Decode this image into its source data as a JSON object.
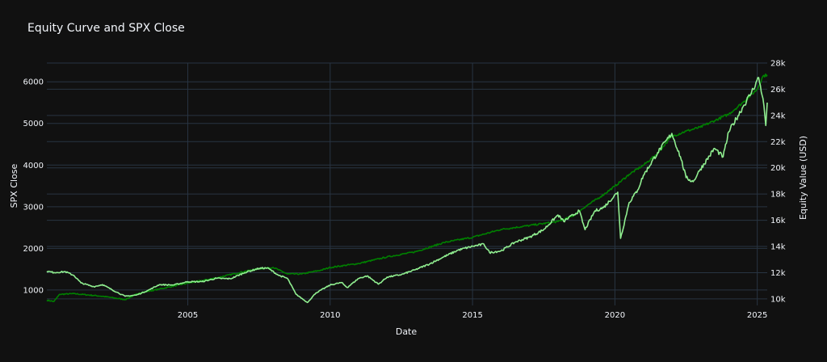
{
  "chart_data": {
    "type": "line",
    "title": "Equity Curve and SPX Close",
    "xlabel": "Date",
    "ylabel_left": "SPX Close",
    "ylabel_right": "Equity Value (USD)",
    "x_ticks": [
      "2005",
      "2010",
      "2015",
      "2020",
      "2025"
    ],
    "x_range": [
      2000.05,
      2025.35
    ],
    "y_left_ticks": [
      "1000",
      "2000",
      "3000",
      "4000",
      "5000",
      "6000"
    ],
    "y_left_range": [
      630,
      6450
    ],
    "y_right_ticks": [
      "10k",
      "12k",
      "14k",
      "16k",
      "18k",
      "20k",
      "22k",
      "24k",
      "26k",
      "28k"
    ],
    "y_right_range": [
      9500,
      28000
    ],
    "grid": true,
    "colors": {
      "background": "#111111",
      "grid": "#283442",
      "text": "#f2f5fa",
      "spx": "#90ee90",
      "equity": "#008000",
      "equity_flat": "#0000ff"
    },
    "series": [
      {
        "axis": "left",
        "color": "#90ee90",
        "x": [
          2000.05,
          2000.3,
          2000.7,
          2001.0,
          2001.25,
          2001.7,
          2002.0,
          2002.5,
          2002.8,
          2003.2,
          2003.6,
          2004.0,
          2004.5,
          2005.0,
          2005.5,
          2006.0,
          2006.5,
          2007.0,
          2007.5,
          2007.8,
          2008.2,
          2008.5,
          2008.8,
          2009.2,
          2009.5,
          2010.0,
          2010.4,
          2010.6,
          2011.0,
          2011.3,
          2011.7,
          2012.0,
          2012.5,
          2013.0,
          2013.5,
          2014.0,
          2014.5,
          2015.0,
          2015.4,
          2015.6,
          2016.0,
          2016.5,
          2017.0,
          2017.5,
          2018.0,
          2018.2,
          2018.75,
          2018.95,
          2019.3,
          2019.6,
          2020.1,
          2020.2,
          2020.5,
          2020.8,
          2021.0,
          2021.5,
          2022.0,
          2022.3,
          2022.5,
          2022.75,
          2023.0,
          2023.5,
          2023.8,
          2024.0,
          2024.5,
          2024.8,
          2025.05,
          2025.2,
          2025.3,
          2025.35
        ],
        "y": [
          1450,
          1420,
          1440,
          1350,
          1170,
          1080,
          1130,
          950,
          850,
          880,
          990,
          1130,
          1120,
          1200,
          1200,
          1280,
          1270,
          1420,
          1520,
          1530,
          1350,
          1280,
          900,
          700,
          930,
          1120,
          1180,
          1060,
          1280,
          1340,
          1140,
          1310,
          1370,
          1490,
          1630,
          1800,
          1960,
          2050,
          2100,
          1900,
          1940,
          2150,
          2270,
          2450,
          2800,
          2650,
          2900,
          2450,
          2900,
          2980,
          3350,
          2240,
          3100,
          3400,
          3750,
          4300,
          4760,
          4200,
          3700,
          3600,
          3900,
          4400,
          4200,
          4800,
          5400,
          5750,
          6100,
          5600,
          4950,
          5500
        ]
      },
      {
        "axis": "right",
        "color": "#008000",
        "x": [
          2000.05,
          2000.3,
          2000.5,
          2001.0,
          2002.0,
          2002.8,
          2003.3,
          2004.0,
          2005.0,
          2006.0,
          2007.0,
          2007.5,
          2008.0,
          2008.5,
          2009.0,
          2009.7,
          2010.0,
          2011.0,
          2012.0,
          2013.0,
          2014.0,
          2015.0,
          2016.0,
          2017.0,
          2018.0,
          2018.5,
          2019.0,
          2019.5,
          2020.0,
          2020.5,
          2021.0,
          2021.5,
          2021.8,
          2022.0,
          2022.5,
          2023.0,
          2023.5,
          2024.0,
          2024.5,
          2025.0,
          2025.2,
          2025.35
        ],
        "y": [
          9900,
          9800,
          10350,
          10400,
          10200,
          9950,
          10450,
          10750,
          11200,
          11600,
          12100,
          12300,
          12400,
          11900,
          11900,
          12200,
          12400,
          12700,
          13200,
          13600,
          14300,
          14700,
          15300,
          15600,
          15900,
          16300,
          17100,
          17800,
          18600,
          19500,
          20200,
          21100,
          21900,
          22400,
          22800,
          23100,
          23600,
          24100,
          25000,
          26000,
          27000,
          27100
        ]
      }
    ]
  }
}
